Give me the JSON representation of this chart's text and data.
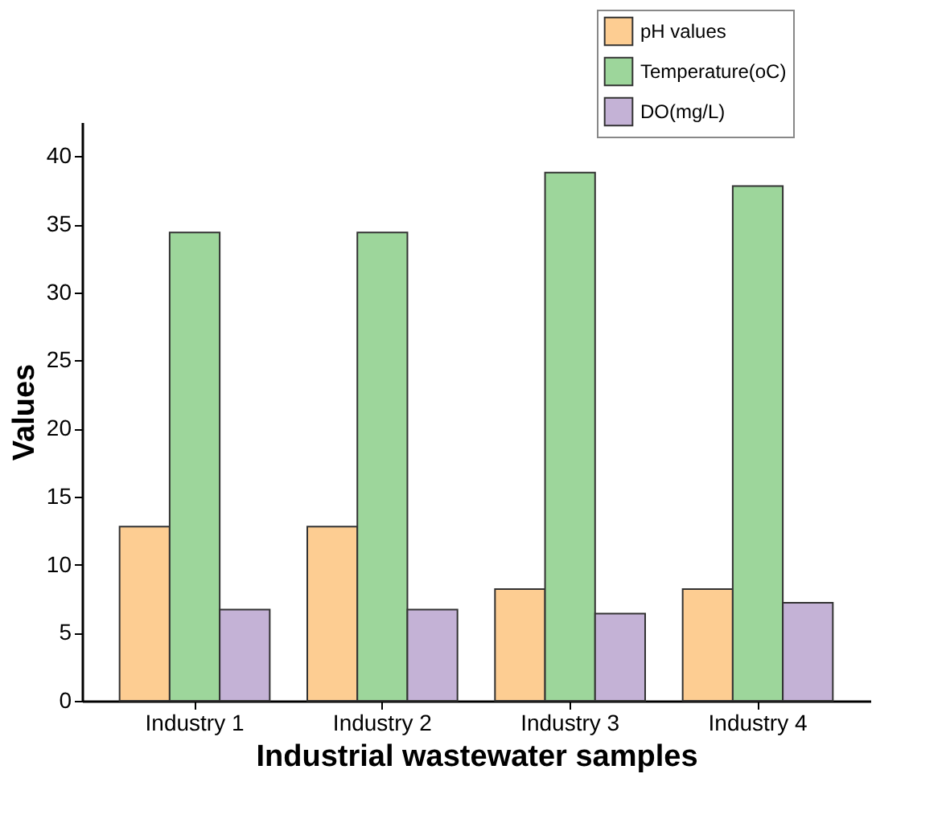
{
  "chart_data": {
    "type": "bar",
    "xlabel": "Industrial wastewater samples",
    "ylabel": "Values",
    "categories": [
      "Industry 1",
      "Industry 2",
      "Industry 3",
      "Industry 4"
    ],
    "series": [
      {
        "name": "pH values",
        "color": "#fdcd92",
        "values": [
          12.8,
          12.8,
          8.2,
          8.2
        ]
      },
      {
        "name": "Temperature(oC)",
        "color": "#9dd69b",
        "values": [
          34.4,
          34.4,
          38.8,
          37.8
        ]
      },
      {
        "name": "DO(mg/L)",
        "color": "#c4b2d6",
        "values": [
          6.7,
          6.7,
          6.4,
          7.2
        ]
      }
    ],
    "ylim": [
      0,
      42.5
    ],
    "yticks": [
      0,
      5,
      10,
      15,
      20,
      25,
      30,
      35,
      40
    ],
    "grid": false,
    "legend": "top right"
  }
}
